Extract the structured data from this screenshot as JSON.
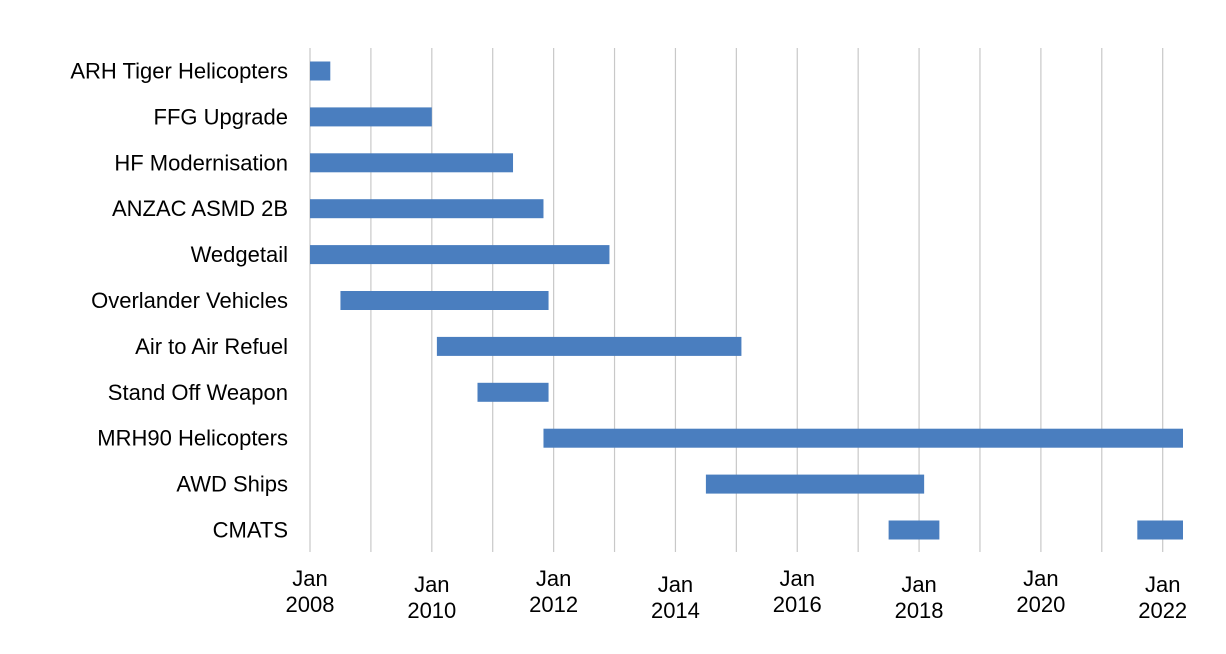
{
  "chart_data": {
    "type": "bar",
    "orientation": "horizontal",
    "title": "",
    "xlabel": "",
    "ylabel": "",
    "grid": "vertical",
    "legend": "none",
    "bar_color": "#4a7ebf",
    "xlim": [
      "2008-01",
      "2022-05"
    ],
    "x_ticks": [
      {
        "line1": "Jan",
        "line2": "2008"
      },
      {
        "line1": "Jan",
        "line2": "2010"
      },
      {
        "line1": "Jan",
        "line2": "2012"
      },
      {
        "line1": "Jan",
        "line2": "2014"
      },
      {
        "line1": "Jan",
        "line2": "2016"
      },
      {
        "line1": "Jan",
        "line2": "2018"
      },
      {
        "line1": "Jan",
        "line2": "2020"
      },
      {
        "line1": "Jan",
        "line2": "2022"
      }
    ],
    "categories": [
      "ARH Tiger Helicopters",
      "FFG Upgrade",
      "HF Modernisation",
      "ANZAC ASMD 2B",
      "Wedgetail",
      "Overlander Vehicles",
      "Air to Air Refuel",
      "Stand Off Weapon",
      "MRH90 Helicopters",
      "AWD Ships",
      "CMATS"
    ],
    "series": [
      {
        "bars": [
          {
            "category": "ARH Tiger Helicopters",
            "segments": [
              {
                "start": "2008-01",
                "end": "2008-05"
              }
            ]
          },
          {
            "category": "FFG Upgrade",
            "segments": [
              {
                "start": "2008-01",
                "end": "2010-01"
              }
            ]
          },
          {
            "category": "HF Modernisation",
            "segments": [
              {
                "start": "2008-01",
                "end": "2011-05"
              }
            ]
          },
          {
            "category": "ANZAC ASMD 2B",
            "segments": [
              {
                "start": "2008-01",
                "end": "2011-11"
              }
            ]
          },
          {
            "category": "Wedgetail",
            "segments": [
              {
                "start": "2008-01",
                "end": "2012-12"
              }
            ]
          },
          {
            "category": "Overlander Vehicles",
            "segments": [
              {
                "start": "2008-07",
                "end": "2011-12"
              }
            ]
          },
          {
            "category": "Air to Air Refuel",
            "segments": [
              {
                "start": "2010-02",
                "end": "2015-02"
              }
            ]
          },
          {
            "category": "Stand Off Weapon",
            "segments": [
              {
                "start": "2010-10",
                "end": "2011-12"
              }
            ]
          },
          {
            "category": "MRH90 Helicopters",
            "segments": [
              {
                "start": "2011-11",
                "end": "2022-05"
              }
            ]
          },
          {
            "category": "AWD Ships",
            "segments": [
              {
                "start": "2014-07",
                "end": "2018-02"
              }
            ]
          },
          {
            "category": "CMATS",
            "segments": [
              {
                "start": "2017-07",
                "end": "2018-05"
              },
              {
                "start": "2021-08",
                "end": "2022-05"
              }
            ]
          }
        ]
      }
    ]
  }
}
